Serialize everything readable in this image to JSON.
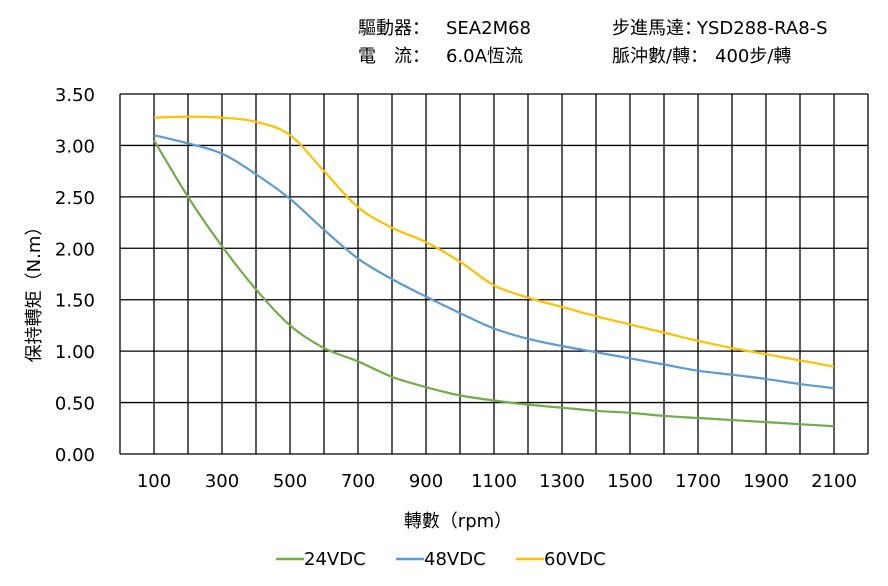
{
  "header": {
    "driver_label": "驅動器：",
    "driver_value": "SEA2M68",
    "motor_label": "步進馬達：",
    "motor_value": "YSD288-RA8-S",
    "current_label": "電　流：",
    "current_value": "6.0A恆流",
    "pulse_label": "脈沖數/轉：",
    "pulse_value": "400步/轉"
  },
  "chart_data": {
    "type": "line",
    "xlabel": "轉數（rpm）",
    "ylabel": "保持轉矩（N.m）",
    "xlim": [
      0,
      2200
    ],
    "ylim": [
      0,
      3.5
    ],
    "grid": true,
    "legend_placement": "bottom",
    "x": [
      100,
      200,
      300,
      400,
      500,
      600,
      700,
      800,
      900,
      1000,
      1100,
      1200,
      1300,
      1400,
      1500,
      1600,
      1700,
      1800,
      1900,
      2000,
      2100
    ],
    "xticks": [
      "100",
      "300",
      "500",
      "700",
      "900",
      "1100",
      "1300",
      "1500",
      "1700",
      "1900",
      "2100"
    ],
    "yticks": [
      "0.00",
      "0.50",
      "1.00",
      "1.50",
      "2.00",
      "2.50",
      "3.00",
      "3.50"
    ],
    "series": [
      {
        "name": "24VDC",
        "color": "#70AD47",
        "values": [
          3.05,
          2.5,
          2.02,
          1.6,
          1.25,
          1.03,
          0.9,
          0.75,
          0.65,
          0.57,
          0.52,
          0.48,
          0.45,
          0.42,
          0.4,
          0.37,
          0.35,
          0.33,
          0.31,
          0.29,
          0.27
        ]
      },
      {
        "name": "48VDC",
        "color": "#5B9BD5",
        "values": [
          3.1,
          3.02,
          2.92,
          2.72,
          2.48,
          2.18,
          1.9,
          1.7,
          1.53,
          1.37,
          1.22,
          1.12,
          1.05,
          0.99,
          0.93,
          0.87,
          0.81,
          0.77,
          0.73,
          0.68,
          0.64
        ]
      },
      {
        "name": "60VDC",
        "color": "#FFC000",
        "values": [
          3.27,
          3.28,
          3.27,
          3.23,
          3.1,
          2.75,
          2.4,
          2.2,
          2.06,
          1.87,
          1.64,
          1.52,
          1.43,
          1.34,
          1.26,
          1.18,
          1.1,
          1.03,
          0.97,
          0.91,
          0.85
        ]
      }
    ]
  }
}
